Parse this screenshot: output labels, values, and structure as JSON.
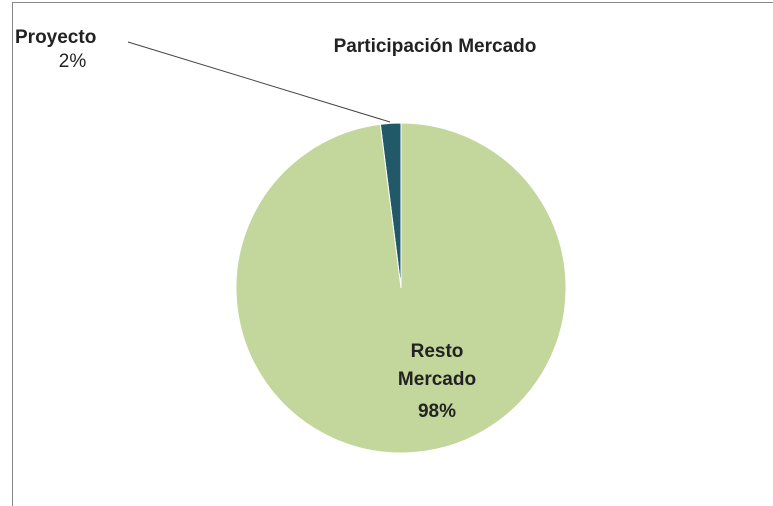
{
  "chart_data": {
    "type": "pie",
    "title": "Participación Mercado",
    "categories": [
      "Proyecto",
      "Resto Mercado"
    ],
    "values": [
      2,
      98
    ],
    "value_labels": [
      "2%",
      "98%"
    ],
    "colors": [
      "#215968",
      "#c3d69b"
    ]
  }
}
